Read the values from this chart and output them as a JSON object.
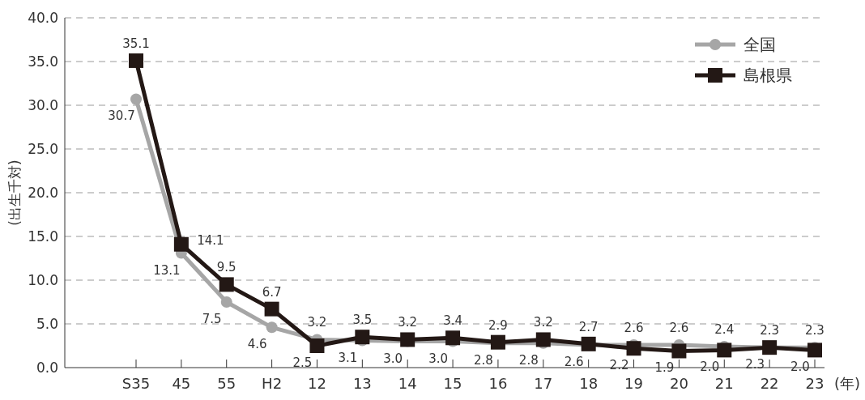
{
  "chart_data": {
    "type": "line",
    "xlabel": "(年)",
    "ylabel": "(出生千対)",
    "categories": [
      "S35",
      "45",
      "55",
      "H2",
      "12",
      "13",
      "14",
      "15",
      "16",
      "17",
      "18",
      "19",
      "20",
      "21",
      "22",
      "23"
    ],
    "series": [
      {
        "name": "全国",
        "color": "#a6a6a6",
        "marker": "circle",
        "values": [
          30.7,
          13.1,
          7.5,
          4.6,
          3.2,
          3.1,
          3.0,
          3.0,
          2.8,
          2.8,
          2.6,
          2.6,
          2.6,
          2.4,
          2.3,
          2.3
        ],
        "value_labels": [
          "30.7",
          "13.1",
          "7.5",
          "4.6",
          "3.2",
          "3.1",
          "3.0",
          "3.0",
          "2.8",
          "2.8",
          "2.6",
          "2.6",
          "2.6",
          "2.4",
          "2.3",
          "2.3"
        ]
      },
      {
        "name": "島根県",
        "color": "#231815",
        "marker": "square",
        "values": [
          35.1,
          14.1,
          9.5,
          6.7,
          2.5,
          3.5,
          3.2,
          3.4,
          2.9,
          3.2,
          2.7,
          2.2,
          1.9,
          2.0,
          2.3,
          2.0
        ],
        "value_labels": [
          "35.1",
          "14.1",
          "9.5",
          "6.7",
          "2.5",
          "3.5",
          "3.2",
          "3.4",
          "2.9",
          "3.2",
          "2.7",
          "2.2",
          "1.9",
          "2.0",
          "2.3",
          "2.0"
        ]
      }
    ],
    "ylim": [
      0,
      40
    ],
    "yticks": [
      {
        "value": 0,
        "label": "0.0"
      },
      {
        "value": 5,
        "label": "5.0"
      },
      {
        "value": 10,
        "label": "10.0"
      },
      {
        "value": 15,
        "label": "15.0"
      },
      {
        "value": 20,
        "label": "20.0"
      },
      {
        "value": 25,
        "label": "25.0"
      },
      {
        "value": 30,
        "label": "30.0"
      },
      {
        "value": 35,
        "label": "35.0"
      },
      {
        "value": 40,
        "label": "40.0"
      }
    ],
    "grid": "y",
    "legend": "top right",
    "line_style": "solid"
  }
}
